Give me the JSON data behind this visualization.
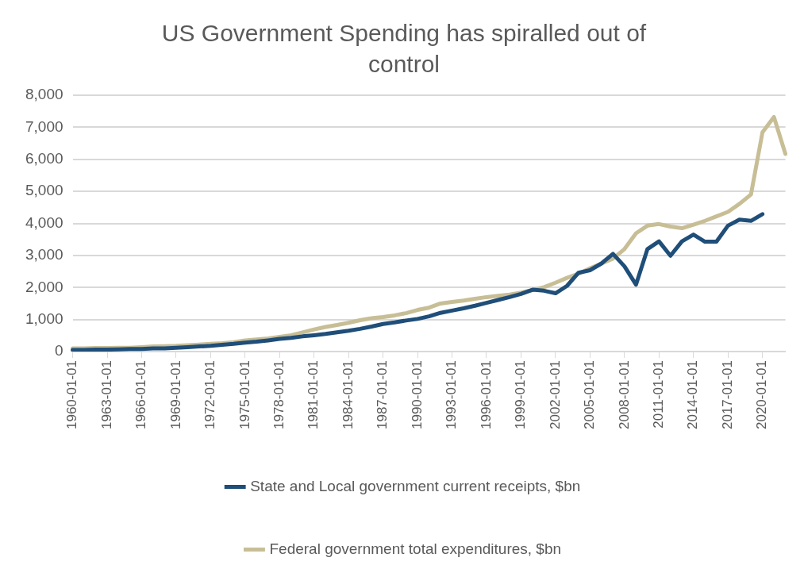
{
  "chart_data": {
    "type": "line",
    "title": "US Government Spending has spiralled out of control",
    "categories": [
      "1960-01-01",
      null,
      null,
      "1963-01-01",
      null,
      null,
      "1966-01-01",
      null,
      null,
      "1969-01-01",
      null,
      null,
      "1972-01-01",
      null,
      null,
      "1975-01-01",
      null,
      null,
      "1978-01-01",
      null,
      null,
      "1981-01-01",
      null,
      null,
      "1984-01-01",
      null,
      null,
      "1987-01-01",
      null,
      null,
      "1990-01-01",
      null,
      null,
      "1993-01-01",
      null,
      null,
      "1996-01-01",
      null,
      null,
      "1999-01-01",
      null,
      null,
      "2002-01-01",
      null,
      null,
      "2005-01-01",
      null,
      null,
      "2008-01-01",
      null,
      null,
      "2011-01-01",
      null,
      null,
      "2014-01-01",
      null,
      null,
      "2017-01-01",
      null,
      null,
      "2020-01-01",
      null,
      null
    ],
    "series": [
      {
        "name": "State and Local government current receipts, $bn",
        "color": "#1f4e79",
        "values": [
          50,
          50,
          60,
          60,
          70,
          80,
          80,
          100,
          100,
          120,
          140,
          160,
          180,
          210,
          240,
          280,
          310,
          350,
          395,
          430,
          475,
          510,
          550,
          600,
          650,
          710,
          780,
          860,
          910,
          970,
          1020,
          1100,
          1210,
          1280,
          1350,
          1430,
          1520,
          1610,
          1700,
          1800,
          1930,
          1900,
          1820,
          2050,
          2460,
          2540,
          2750,
          3050,
          2660,
          2090,
          3200,
          3440,
          2990,
          3440,
          3650,
          3430,
          3430,
          3930,
          4120,
          4080,
          4290,
          null,
          null
        ]
      },
      {
        "name": "Federal government total expenditures, $bn",
        "color": "#c8be96",
        "values": [
          100,
          100,
          110,
          110,
          120,
          120,
          140,
          160,
          170,
          180,
          200,
          220,
          240,
          260,
          290,
          350,
          380,
          410,
          460,
          510,
          600,
          690,
          770,
          830,
          900,
          980,
          1040,
          1080,
          1130,
          1200,
          1300,
          1370,
          1500,
          1550,
          1590,
          1650,
          1700,
          1740,
          1780,
          1840,
          1920,
          2010,
          2150,
          2300,
          2430,
          2600,
          2750,
          2900,
          3200,
          3690,
          3930,
          3980,
          3900,
          3850,
          3960,
          4080,
          4220,
          4360,
          4610,
          4900,
          6840,
          7320,
          6170
        ]
      }
    ],
    "ylim": [
      0,
      8000
    ],
    "yticks": [
      0,
      {
        "value": 1000,
        "label": "1,000"
      },
      {
        "value": 2000,
        "label": "2,000"
      },
      {
        "value": 3000,
        "label": "3,000"
      },
      {
        "value": 4000,
        "label": "4,000"
      },
      {
        "value": 5000,
        "label": "5,000"
      },
      {
        "value": 6000,
        "label": "6,000"
      },
      {
        "value": 7000,
        "label": "7,000"
      },
      {
        "value": 8000,
        "label": "8,000"
      }
    ],
    "grid": "y",
    "legend": "bottom",
    "marker": "none",
    "line_style": "solid"
  }
}
